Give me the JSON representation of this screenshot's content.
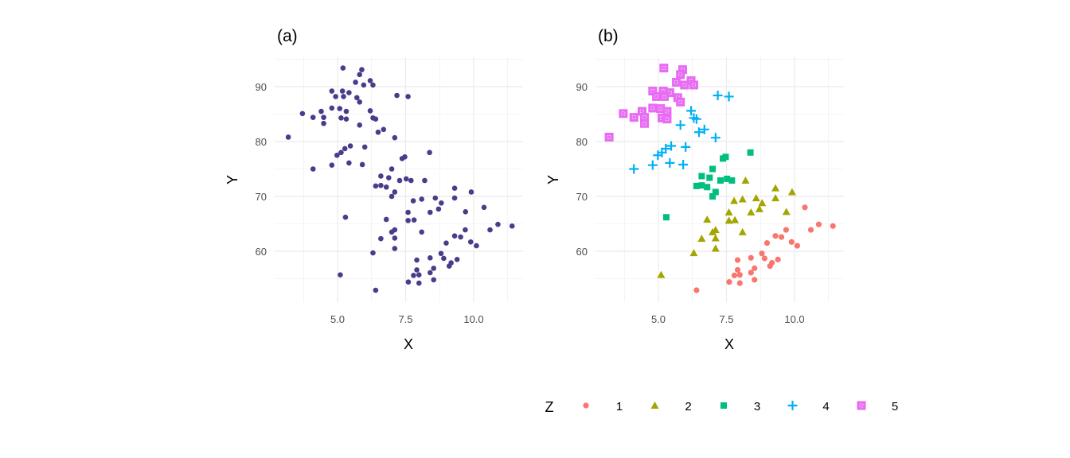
{
  "chart_data": [
    {
      "type": "scatter",
      "title": "(a)",
      "xlabel": "X",
      "ylabel": "Y",
      "xlim": [
        2.69,
        11.81
      ],
      "ylim": [
        50.7,
        95.4
      ],
      "xticks": [
        "5.0",
        "7.5",
        "10.0"
      ],
      "yticks": [
        "60",
        "70",
        "80",
        "90"
      ],
      "color": "#483D8B",
      "colored_by_group": false
    },
    {
      "type": "scatter",
      "title": "(b)",
      "xlabel": "X",
      "ylabel": "Y",
      "xlim": [
        2.69,
        11.81
      ],
      "ylim": [
        50.7,
        95.4
      ],
      "xticks": [
        "5.0",
        "7.5",
        "10.0"
      ],
      "yticks": [
        "60",
        "70",
        "80",
        "90"
      ],
      "colored_by_group": true,
      "legend": {
        "title": "Z",
        "position": "bottom",
        "entries": [
          "1",
          "2",
          "3",
          "4",
          "5"
        ],
        "colors": [
          "#F8766D",
          "#A3A500",
          "#00BF7D",
          "#00B0F6",
          "#E76BF3"
        ],
        "shapes": [
          "circle",
          "triangle",
          "square",
          "plus",
          "boxed-square"
        ]
      }
    }
  ],
  "points": [
    [
      5.2,
      93.4,
      5
    ],
    [
      5.89,
      93.1,
      5
    ],
    [
      5.81,
      92.2,
      5
    ],
    [
      5.66,
      90.8,
      5
    ],
    [
      6.2,
      91.1,
      5
    ],
    [
      6.3,
      90.3,
      5
    ],
    [
      5.96,
      90.3,
      5
    ],
    [
      4.79,
      89.2,
      5
    ],
    [
      5.18,
      89.2,
      5
    ],
    [
      5.42,
      88.9,
      5
    ],
    [
      4.93,
      88.2,
      5
    ],
    [
      5.22,
      88.2,
      5
    ],
    [
      5.71,
      88.0,
      5
    ],
    [
      5.81,
      87.2,
      5
    ],
    [
      4.79,
      86.1,
      5
    ],
    [
      5.08,
      86.0,
      5
    ],
    [
      4.4,
      85.5,
      5
    ],
    [
      5.32,
      85.5,
      5
    ],
    [
      3.71,
      85.1,
      5
    ],
    [
      4.1,
      84.4,
      5
    ],
    [
      4.49,
      84.4,
      5
    ],
    [
      5.13,
      84.3,
      5
    ],
    [
      5.32,
      84.1,
      5
    ],
    [
      4.49,
      83.3,
      5
    ],
    [
      3.19,
      80.8,
      5
    ],
    [
      7.18,
      88.4,
      4
    ],
    [
      7.59,
      88.2,
      4
    ],
    [
      6.2,
      85.6,
      4
    ],
    [
      6.3,
      84.3,
      4
    ],
    [
      6.4,
      84.1,
      4
    ],
    [
      5.81,
      83.0,
      4
    ],
    [
      6.49,
      81.7,
      4
    ],
    [
      6.69,
      82.2,
      4
    ],
    [
      7.1,
      80.7,
      4
    ],
    [
      5.47,
      79.2,
      4
    ],
    [
      5.27,
      78.7,
      4
    ],
    [
      6.0,
      79.0,
      4
    ],
    [
      5.13,
      78.0,
      4
    ],
    [
      4.98,
      77.5,
      4
    ],
    [
      5.42,
      76.1,
      4
    ],
    [
      4.79,
      75.7,
      4
    ],
    [
      5.91,
      75.8,
      4
    ],
    [
      4.1,
      75.0,
      4
    ],
    [
      8.38,
      78.0,
      3
    ],
    [
      7.47,
      77.2,
      3
    ],
    [
      7.37,
      76.9,
      3
    ],
    [
      6.99,
      75.0,
      3
    ],
    [
      6.59,
      73.7,
      3
    ],
    [
      6.88,
      73.4,
      3
    ],
    [
      7.28,
      72.9,
      3
    ],
    [
      7.52,
      73.2,
      3
    ],
    [
      7.7,
      72.9,
      3
    ],
    [
      6.4,
      71.9,
      3
    ],
    [
      6.59,
      72.0,
      3
    ],
    [
      6.79,
      71.7,
      3
    ],
    [
      7.1,
      70.8,
      3
    ],
    [
      6.99,
      70.0,
      3
    ],
    [
      5.29,
      66.2,
      3
    ],
    [
      8.2,
      72.9,
      2
    ],
    [
      9.3,
      71.5,
      2
    ],
    [
      9.91,
      70.8,
      2
    ],
    [
      7.78,
      69.2,
      2
    ],
    [
      8.09,
      69.5,
      2
    ],
    [
      8.59,
      69.7,
      2
    ],
    [
      9.3,
      69.7,
      2
    ],
    [
      8.81,
      68.8,
      2
    ],
    [
      8.71,
      67.7,
      2
    ],
    [
      7.59,
      67.1,
      2
    ],
    [
      8.4,
      67.1,
      2
    ],
    [
      9.7,
      67.2,
      2
    ],
    [
      6.79,
      65.8,
      2
    ],
    [
      7.59,
      65.6,
      2
    ],
    [
      7.81,
      65.7,
      2
    ],
    [
      7.1,
      63.9,
      2
    ],
    [
      6.99,
      63.5,
      2
    ],
    [
      8.09,
      63.5,
      2
    ],
    [
      6.59,
      62.3,
      2
    ],
    [
      7.1,
      62.4,
      2
    ],
    [
      7.1,
      60.5,
      2
    ],
    [
      6.3,
      59.7,
      2
    ],
    [
      5.1,
      55.7,
      2
    ],
    [
      10.38,
      68.0,
      1
    ],
    [
      10.89,
      64.9,
      1
    ],
    [
      11.41,
      64.6,
      1
    ],
    [
      10.6,
      63.9,
      1
    ],
    [
      9.69,
      63.9,
      1
    ],
    [
      9.3,
      62.8,
      1
    ],
    [
      9.52,
      62.6,
      1
    ],
    [
      8.99,
      61.5,
      1
    ],
    [
      9.89,
      61.7,
      1
    ],
    [
      10.1,
      61.0,
      1
    ],
    [
      8.8,
      59.6,
      1
    ],
    [
      8.9,
      58.7,
      1
    ],
    [
      9.39,
      58.5,
      1
    ],
    [
      9.17,
      57.9,
      1
    ],
    [
      9.1,
      57.3,
      1
    ],
    [
      7.91,
      58.4,
      1
    ],
    [
      8.4,
      58.8,
      1
    ],
    [
      7.91,
      56.6,
      1
    ],
    [
      8.53,
      56.9,
      1
    ],
    [
      8.4,
      56.1,
      1
    ],
    [
      7.99,
      55.7,
      1
    ],
    [
      7.79,
      55.6,
      1
    ],
    [
      8.53,
      54.8,
      1
    ],
    [
      7.6,
      54.4,
      1
    ],
    [
      7.99,
      54.2,
      1
    ],
    [
      6.4,
      52.9,
      1
    ]
  ]
}
